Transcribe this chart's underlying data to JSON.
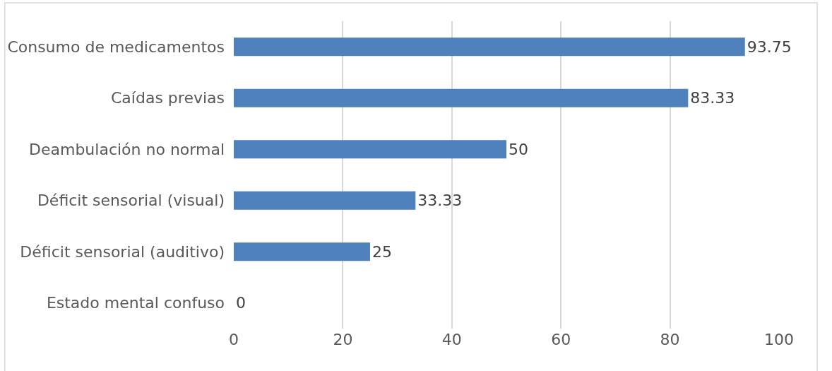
{
  "chart_data": {
    "type": "bar",
    "orientation": "horizontal",
    "categories": [
      "Consumo de medicamentos",
      "Caídas previas",
      "Deambulación no normal",
      "Déficit sensorial (visual)",
      "Déficit sensorial (auditivo)",
      "Estado mental confuso"
    ],
    "values": [
      93.75,
      83.33,
      50,
      33.33,
      25,
      0
    ],
    "color": "#4f81bd",
    "xlim": [
      0,
      100
    ],
    "xticks": [
      0,
      20,
      40,
      60,
      80,
      100
    ],
    "grid": "x",
    "data_labels": true,
    "legend": false
  }
}
